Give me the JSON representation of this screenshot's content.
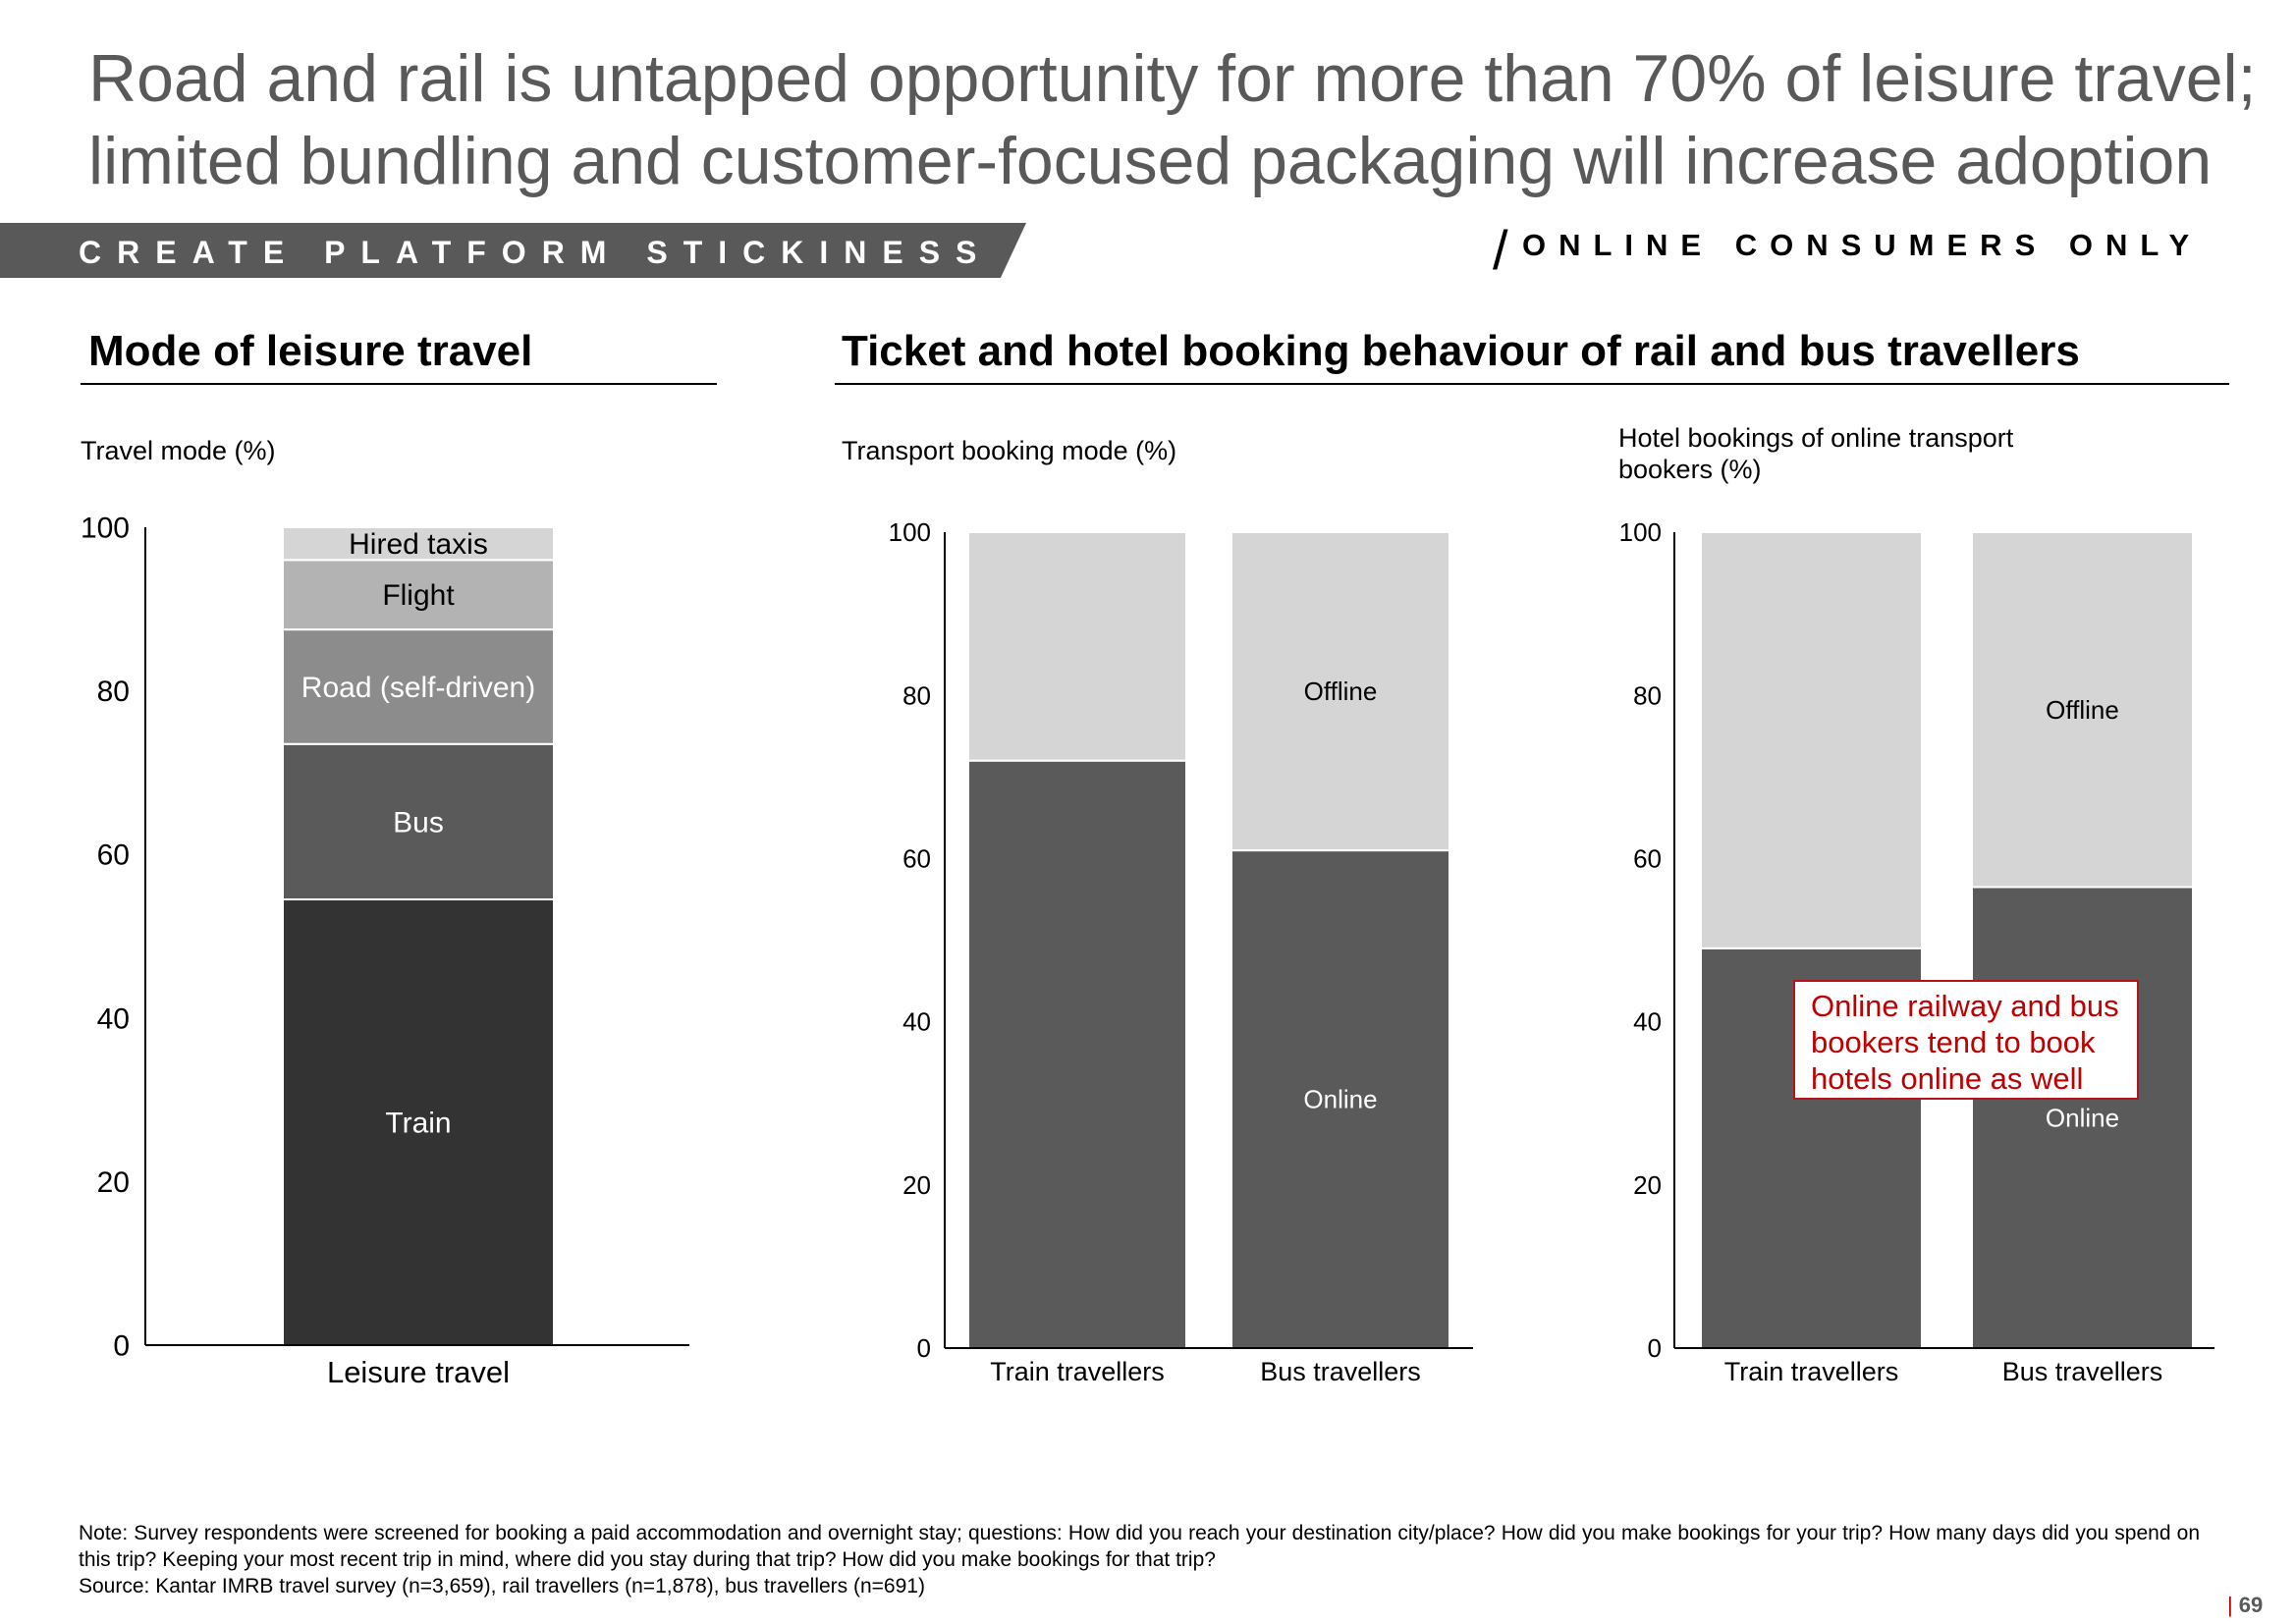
{
  "title": "Road and rail is untapped opportunity for more than 70% of leisure travel; limited bundling and customer-focused packaging will increase adoption",
  "banner": "CREATE PLATFORM STICKINESS",
  "scope": "ONLINE CONSUMERS ONLY",
  "left_section": {
    "title": "Mode of leisure travel"
  },
  "right_section": {
    "title": "Ticket and hotel booking behaviour of rail and bus travellers"
  },
  "callout": "Online railway and bus bookers tend to book hotels online as well",
  "note": {
    "text": "Note: Survey respondents were screened for booking a paid accommodation and overnight stay; questions: How did you reach your destination city/place? How did you make bookings for your trip? How many days did you spend on this trip? Keeping your most recent trip in mind, where did you stay during that trip? How did you make bookings for that trip?",
    "source": "Source: Kantar IMRB travel survey (n=3,659), rail travellers (n=1,878), bus travellers (n=691)"
  },
  "page_number": "69",
  "colors": {
    "title": "#595959",
    "banner": "#595959",
    "train": "#333333",
    "bus": "#5a5a5a",
    "road": "#8c8c8c",
    "flight": "#b3b3b3",
    "taxi": "#d5d5d5",
    "online": "#5a5a5a",
    "offline": "#d5d5d5",
    "callout": "#c00000"
  },
  "chart_data": [
    {
      "type": "bar",
      "stacked": true,
      "title": "Travel mode (%)",
      "categories": [
        "Leisure travel"
      ],
      "ylim": [
        0,
        100
      ],
      "yticks": [
        0,
        20,
        40,
        60,
        80,
        100
      ],
      "series": [
        {
          "name": "Train",
          "values": [
            54.5
          ]
        },
        {
          "name": "Bus",
          "values": [
            19
          ]
        },
        {
          "name": "Road (self-driven)",
          "values": [
            14
          ]
        },
        {
          "name": "Flight",
          "values": [
            8.5
          ]
        },
        {
          "name": "Hired taxis",
          "values": [
            4
          ]
        }
      ],
      "grid": false
    },
    {
      "type": "bar",
      "stacked": true,
      "title": "Transport booking mode (%)",
      "categories": [
        "Train travellers",
        "Bus travellers"
      ],
      "ylim": [
        0,
        100
      ],
      "yticks": [
        0,
        20,
        40,
        60,
        80,
        100
      ],
      "series": [
        {
          "name": "Online",
          "values": [
            72,
            61
          ]
        },
        {
          "name": "Offline",
          "values": [
            28,
            39
          ]
        }
      ],
      "grid": false
    },
    {
      "type": "bar",
      "stacked": true,
      "title": "Hotel bookings of online transport bookers (%)",
      "categories": [
        "Train travellers",
        "Bus travellers"
      ],
      "ylim": [
        0,
        100
      ],
      "yticks": [
        0,
        20,
        40,
        60,
        80,
        100
      ],
      "series": [
        {
          "name": "Online",
          "values": [
            49,
            56.5
          ]
        },
        {
          "name": "Offline",
          "values": [
            51,
            43.5
          ]
        }
      ],
      "grid": false
    }
  ]
}
